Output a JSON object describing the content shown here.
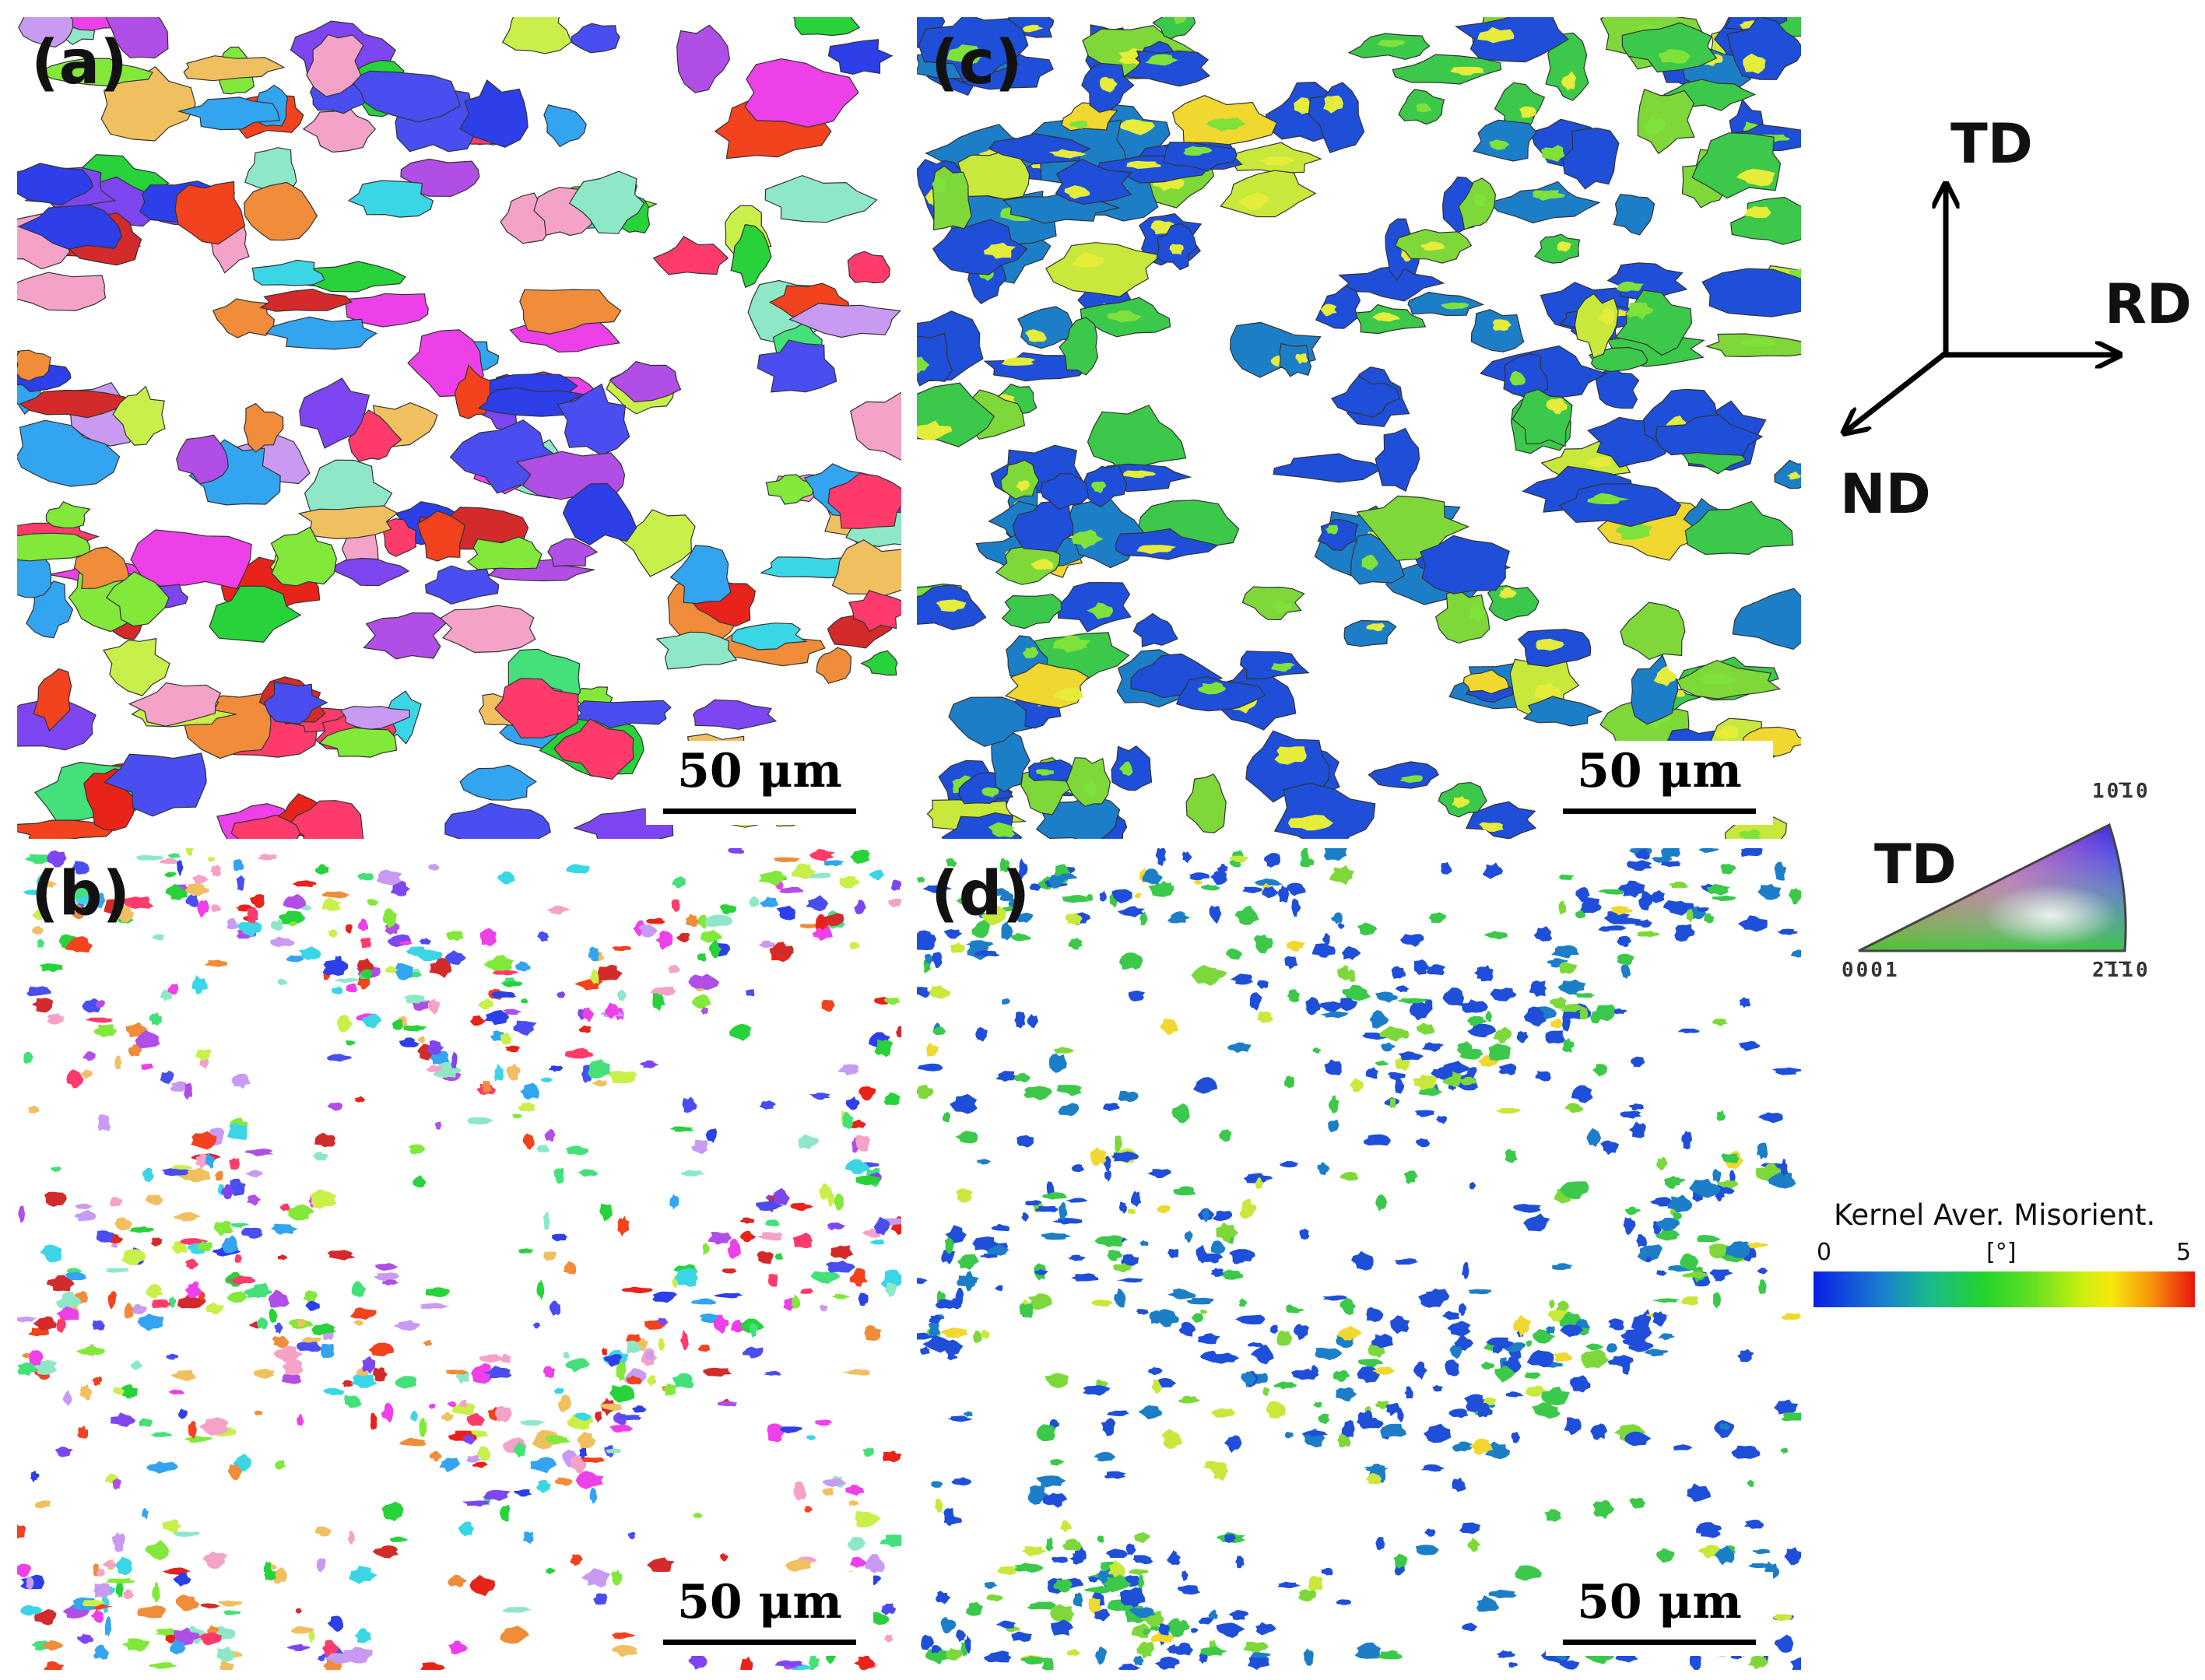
{
  "figure": {
    "panels": [
      {
        "label": "(a)",
        "scale_bar": "50 μm",
        "map": "IPF orientation map"
      },
      {
        "label": "(b)",
        "scale_bar": "50 μm",
        "map": "IPF orientation map"
      },
      {
        "label": "(c)",
        "scale_bar": "50 μm",
        "map": "kernel average misorientation map"
      },
      {
        "label": "(d)",
        "scale_bar": "50 μm",
        "map": "kernel average misorientation map"
      }
    ],
    "axes": {
      "td": "TD",
      "rd": "RD",
      "nd": "ND"
    },
    "ipf_legend": {
      "direction": "TD",
      "pole_top": "10̅10",
      "pole_left": "0001",
      "pole_right": "2̅1̅10"
    },
    "kam_legend": {
      "title": "Kernel Aver. Misorient.",
      "min": "0",
      "unit": "[°]",
      "max": "5"
    }
  }
}
